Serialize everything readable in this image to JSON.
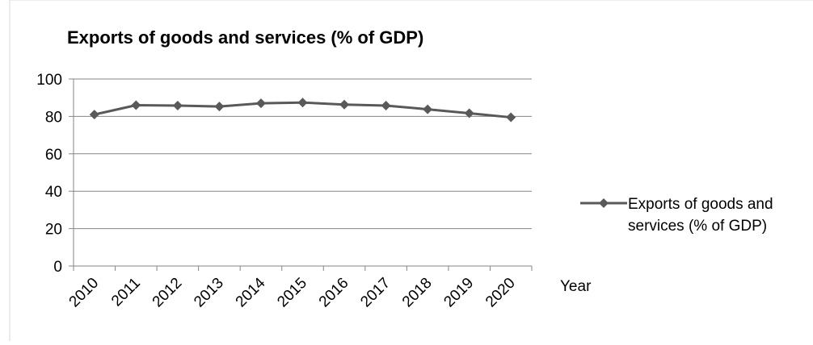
{
  "chart_data": {
    "type": "line",
    "title": "Exports of goods and services (% of GDP)",
    "xlabel": "Year",
    "ylabel": "",
    "categories": [
      "2010",
      "2011",
      "2012",
      "2013",
      "2014",
      "2015",
      "2016",
      "2017",
      "2018",
      "2019",
      "2020"
    ],
    "series": [
      {
        "name": "Exports of goods and services (% of GDP)",
        "legend_lines": [
          "Exports of goods and",
          "services (% of GDP)"
        ],
        "values": [
          81.0,
          86.0,
          85.8,
          85.3,
          87.0,
          87.4,
          86.3,
          85.8,
          83.8,
          81.7,
          79.5
        ],
        "color": "#595959",
        "marker": "diamond"
      }
    ],
    "yticks": [
      "0",
      "20",
      "40",
      "60",
      "80",
      "100"
    ],
    "ylim": [
      0,
      100
    ],
    "grid": true,
    "legend_position": "right"
  }
}
